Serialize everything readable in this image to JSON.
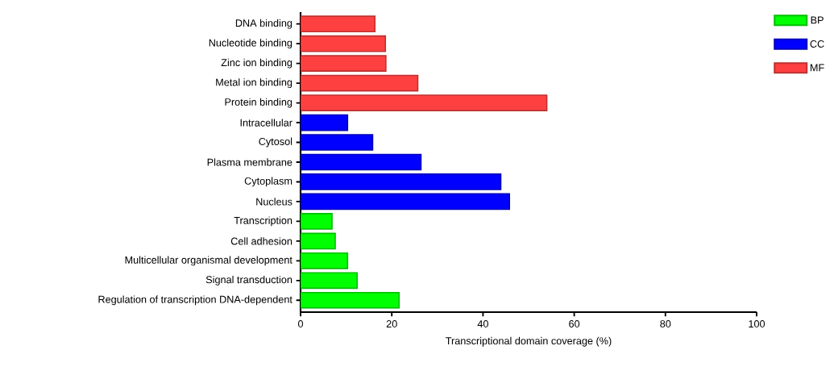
{
  "chart_data": {
    "type": "bar",
    "orientation": "horizontal",
    "xlabel": "Transcriptional domain coverage (%)",
    "categories": [
      "DNA binding",
      "Nucleotide binding",
      "Zinc ion binding",
      "Metal ion binding",
      "Protein binding",
      "Intracellular",
      "Cytosol",
      "Plasma membrane",
      "Cytoplasm",
      "Nucleus",
      "Transcription",
      "Cell adhesion",
      "Multicellular organismal development",
      "Signal transduction",
      "Regulation of transcription DNA-dependent"
    ],
    "series": [
      {
        "name": "BP",
        "color": "#00ff00",
        "values": [
          null,
          null,
          null,
          null,
          null,
          null,
          null,
          null,
          null,
          null,
          6.9,
          7.6,
          10.3,
          12.4,
          21.6
        ]
      },
      {
        "name": "CC",
        "color": "#0000ff",
        "values": [
          null,
          null,
          null,
          null,
          null,
          10.3,
          15.8,
          26.4,
          43.9,
          45.8,
          null,
          null,
          null,
          null,
          null
        ]
      },
      {
        "name": "MF",
        "color": "#ff4040",
        "values": [
          16.3,
          18.6,
          18.7,
          25.7,
          54.0,
          null,
          null,
          null,
          null,
          null,
          null,
          null,
          null,
          null,
          null
        ]
      }
    ],
    "xlim": [
      0,
      100
    ],
    "xticks": [
      0,
      20,
      40,
      60,
      80,
      100
    ],
    "grid": false,
    "legend": "top right"
  }
}
